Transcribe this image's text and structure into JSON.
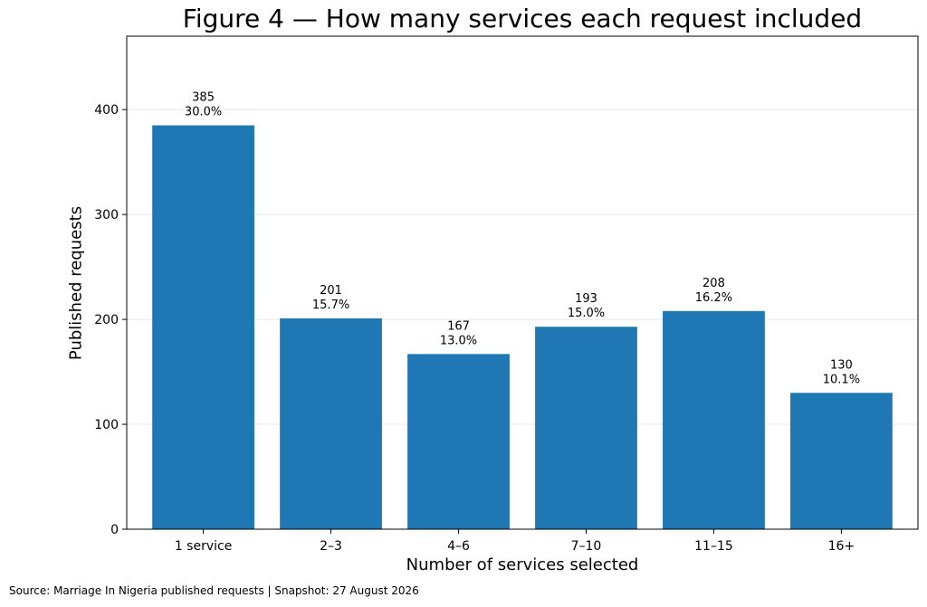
{
  "chart_data": {
    "type": "bar",
    "title": "Figure 4 — How many services each request included",
    "xlabel": "Number of services selected",
    "ylabel": "Published requests",
    "categories": [
      "1 service",
      "2–3",
      "4–6",
      "7–10",
      "11–15",
      "16+"
    ],
    "values": [
      385,
      201,
      167,
      193,
      208,
      130
    ],
    "percent_labels": [
      "30.0%",
      "15.7%",
      "13.0%",
      "15.0%",
      "16.2%",
      "10.1%"
    ],
    "yticks": [
      0,
      100,
      200,
      300,
      400
    ],
    "ylim": [
      0,
      470
    ],
    "grid": "horizontal",
    "bar_color": "#1f77b4",
    "grid_color": "#e8e8e8"
  },
  "source_note": "Source: Marriage In Nigeria published requests | Snapshot: 27 August 2026"
}
